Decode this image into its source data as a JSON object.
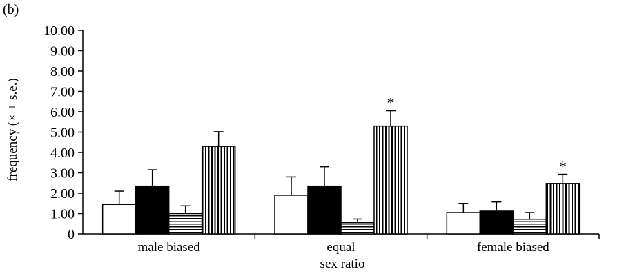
{
  "panel_label": "(b)",
  "chart_data": {
    "type": "bar",
    "title": "",
    "xlabel": "sex ratio",
    "ylabel": "frequency (× + s.e.)",
    "ylim": [
      0,
      10
    ],
    "yticks": [
      "0",
      "1.00",
      "2.00",
      "3.00",
      "4.00",
      "5.00",
      "6.00",
      "7.00",
      "8.00",
      "9.00",
      "10.00"
    ],
    "categories": [
      "male biased",
      "equal",
      "female biased"
    ],
    "series": [
      {
        "fill": "white",
        "values": [
          1.45,
          1.9,
          1.05
        ],
        "errors": [
          0.65,
          0.9,
          0.45
        ]
      },
      {
        "fill": "black",
        "values": [
          2.35,
          2.35,
          1.12
        ],
        "errors": [
          0.8,
          0.95,
          0.45
        ]
      },
      {
        "fill": "horizontal-stripes",
        "values": [
          1.0,
          0.55,
          0.72
        ],
        "errors": [
          0.38,
          0.18,
          0.33
        ]
      },
      {
        "fill": "vertical-stripes",
        "values": [
          4.3,
          5.3,
          2.48
        ],
        "errors": [
          0.72,
          0.75,
          0.45
        ]
      }
    ],
    "annotations": [
      {
        "category": "equal",
        "series_index": 3,
        "text": "*"
      },
      {
        "category": "female biased",
        "series_index": 3,
        "text": "*"
      }
    ],
    "grid": false,
    "legend": "none"
  }
}
